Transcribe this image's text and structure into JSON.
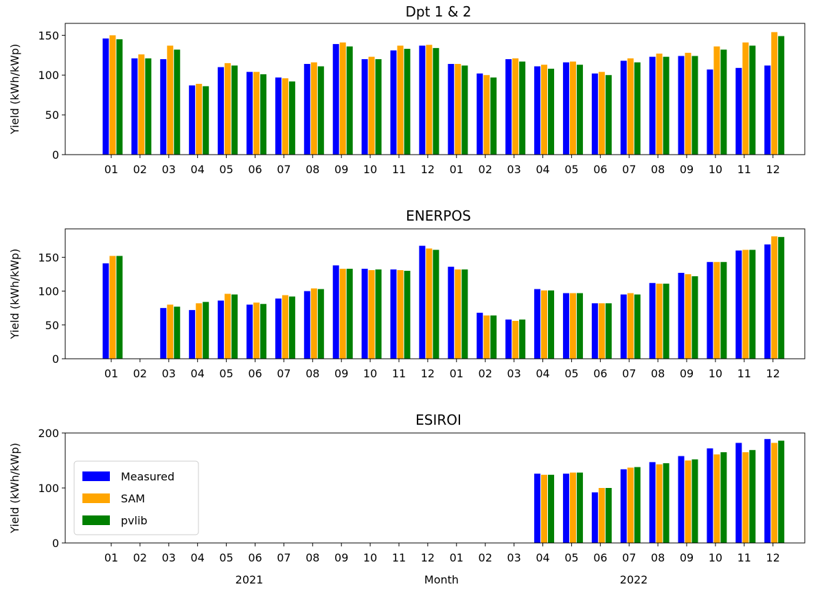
{
  "chart_data": [
    {
      "type": "bar",
      "title": "Dpt 1 & 2",
      "ylabel": "Yield (kWh/kWp)",
      "ylim": [
        0,
        165
      ],
      "yticks": [
        0,
        50,
        100,
        150
      ],
      "categories": [
        "01",
        "02",
        "03",
        "04",
        "05",
        "06",
        "07",
        "08",
        "09",
        "10",
        "11",
        "12",
        "01",
        "02",
        "03",
        "04",
        "05",
        "06",
        "07",
        "08",
        "09",
        "10",
        "11",
        "12"
      ],
      "series": [
        {
          "name": "Measured",
          "color": "#0000ff",
          "values": [
            146,
            121,
            120,
            87,
            110,
            104,
            97,
            114,
            139,
            120,
            131,
            137,
            114,
            102,
            120,
            111,
            116,
            102,
            118,
            123,
            124,
            107,
            109,
            112
          ]
        },
        {
          "name": "SAM",
          "color": "#ffa500",
          "values": [
            150,
            126,
            137,
            89,
            115,
            104,
            96,
            116,
            141,
            123,
            137,
            138,
            114,
            100,
            121,
            113,
            117,
            104,
            121,
            127,
            128,
            136,
            141,
            154
          ]
        },
        {
          "name": "pvlib",
          "color": "#008000",
          "values": [
            145,
            121,
            132,
            86,
            112,
            101,
            92,
            111,
            136,
            120,
            133,
            134,
            112,
            97,
            117,
            108,
            113,
            100,
            116,
            123,
            124,
            132,
            137,
            149
          ]
        }
      ]
    },
    {
      "type": "bar",
      "title": "ENERPOS",
      "ylabel": "Yield (kWh/kWp)",
      "ylim": [
        0,
        192
      ],
      "yticks": [
        0,
        50,
        100,
        150
      ],
      "categories": [
        "01",
        "02",
        "03",
        "04",
        "05",
        "06",
        "07",
        "08",
        "09",
        "10",
        "11",
        "12",
        "01",
        "02",
        "03",
        "04",
        "05",
        "06",
        "07",
        "08",
        "09",
        "10",
        "11",
        "12"
      ],
      "series": [
        {
          "name": "Measured",
          "color": "#0000ff",
          "values": [
            141,
            null,
            75,
            72,
            86,
            80,
            89,
            100,
            138,
            133,
            132,
            167,
            136,
            68,
            58,
            103,
            97,
            82,
            95,
            112,
            127,
            143,
            160,
            169
          ]
        },
        {
          "name": "SAM",
          "color": "#ffa500",
          "values": [
            152,
            null,
            80,
            82,
            96,
            83,
            94,
            104,
            133,
            131,
            131,
            163,
            132,
            64,
            56,
            101,
            97,
            82,
            97,
            111,
            125,
            143,
            161,
            181
          ]
        },
        {
          "name": "pvlib",
          "color": "#008000",
          "values": [
            152,
            null,
            77,
            84,
            95,
            81,
            92,
            103,
            133,
            132,
            130,
            161,
            132,
            64,
            58,
            101,
            97,
            82,
            95,
            111,
            122,
            143,
            161,
            180
          ]
        }
      ]
    },
    {
      "type": "bar",
      "title": "ESIROI",
      "ylabel": "Yield (kWh/kWp)",
      "xlabel": "Month",
      "ylim": [
        0,
        200
      ],
      "yticks": [
        0,
        100,
        200
      ],
      "categories": [
        "01",
        "02",
        "03",
        "04",
        "05",
        "06",
        "07",
        "08",
        "09",
        "10",
        "11",
        "12",
        "01",
        "02",
        "03",
        "04",
        "05",
        "06",
        "07",
        "08",
        "09",
        "10",
        "11",
        "12"
      ],
      "group_labels": [
        "2021",
        "2022"
      ],
      "legend": "center-left",
      "series": [
        {
          "name": "Measured",
          "color": "#0000ff",
          "values": [
            null,
            null,
            null,
            null,
            null,
            null,
            null,
            null,
            null,
            null,
            null,
            null,
            null,
            null,
            null,
            126,
            126,
            92,
            134,
            147,
            158,
            172,
            182,
            189
          ]
        },
        {
          "name": "SAM",
          "color": "#ffa500",
          "values": [
            null,
            null,
            null,
            null,
            null,
            null,
            null,
            null,
            null,
            null,
            null,
            null,
            null,
            null,
            null,
            124,
            128,
            100,
            137,
            143,
            150,
            161,
            165,
            182
          ]
        },
        {
          "name": "pvlib",
          "color": "#008000",
          "values": [
            null,
            null,
            null,
            null,
            null,
            null,
            null,
            null,
            null,
            null,
            null,
            null,
            null,
            null,
            null,
            124,
            128,
            100,
            138,
            145,
            152,
            165,
            169,
            186
          ]
        }
      ]
    }
  ]
}
